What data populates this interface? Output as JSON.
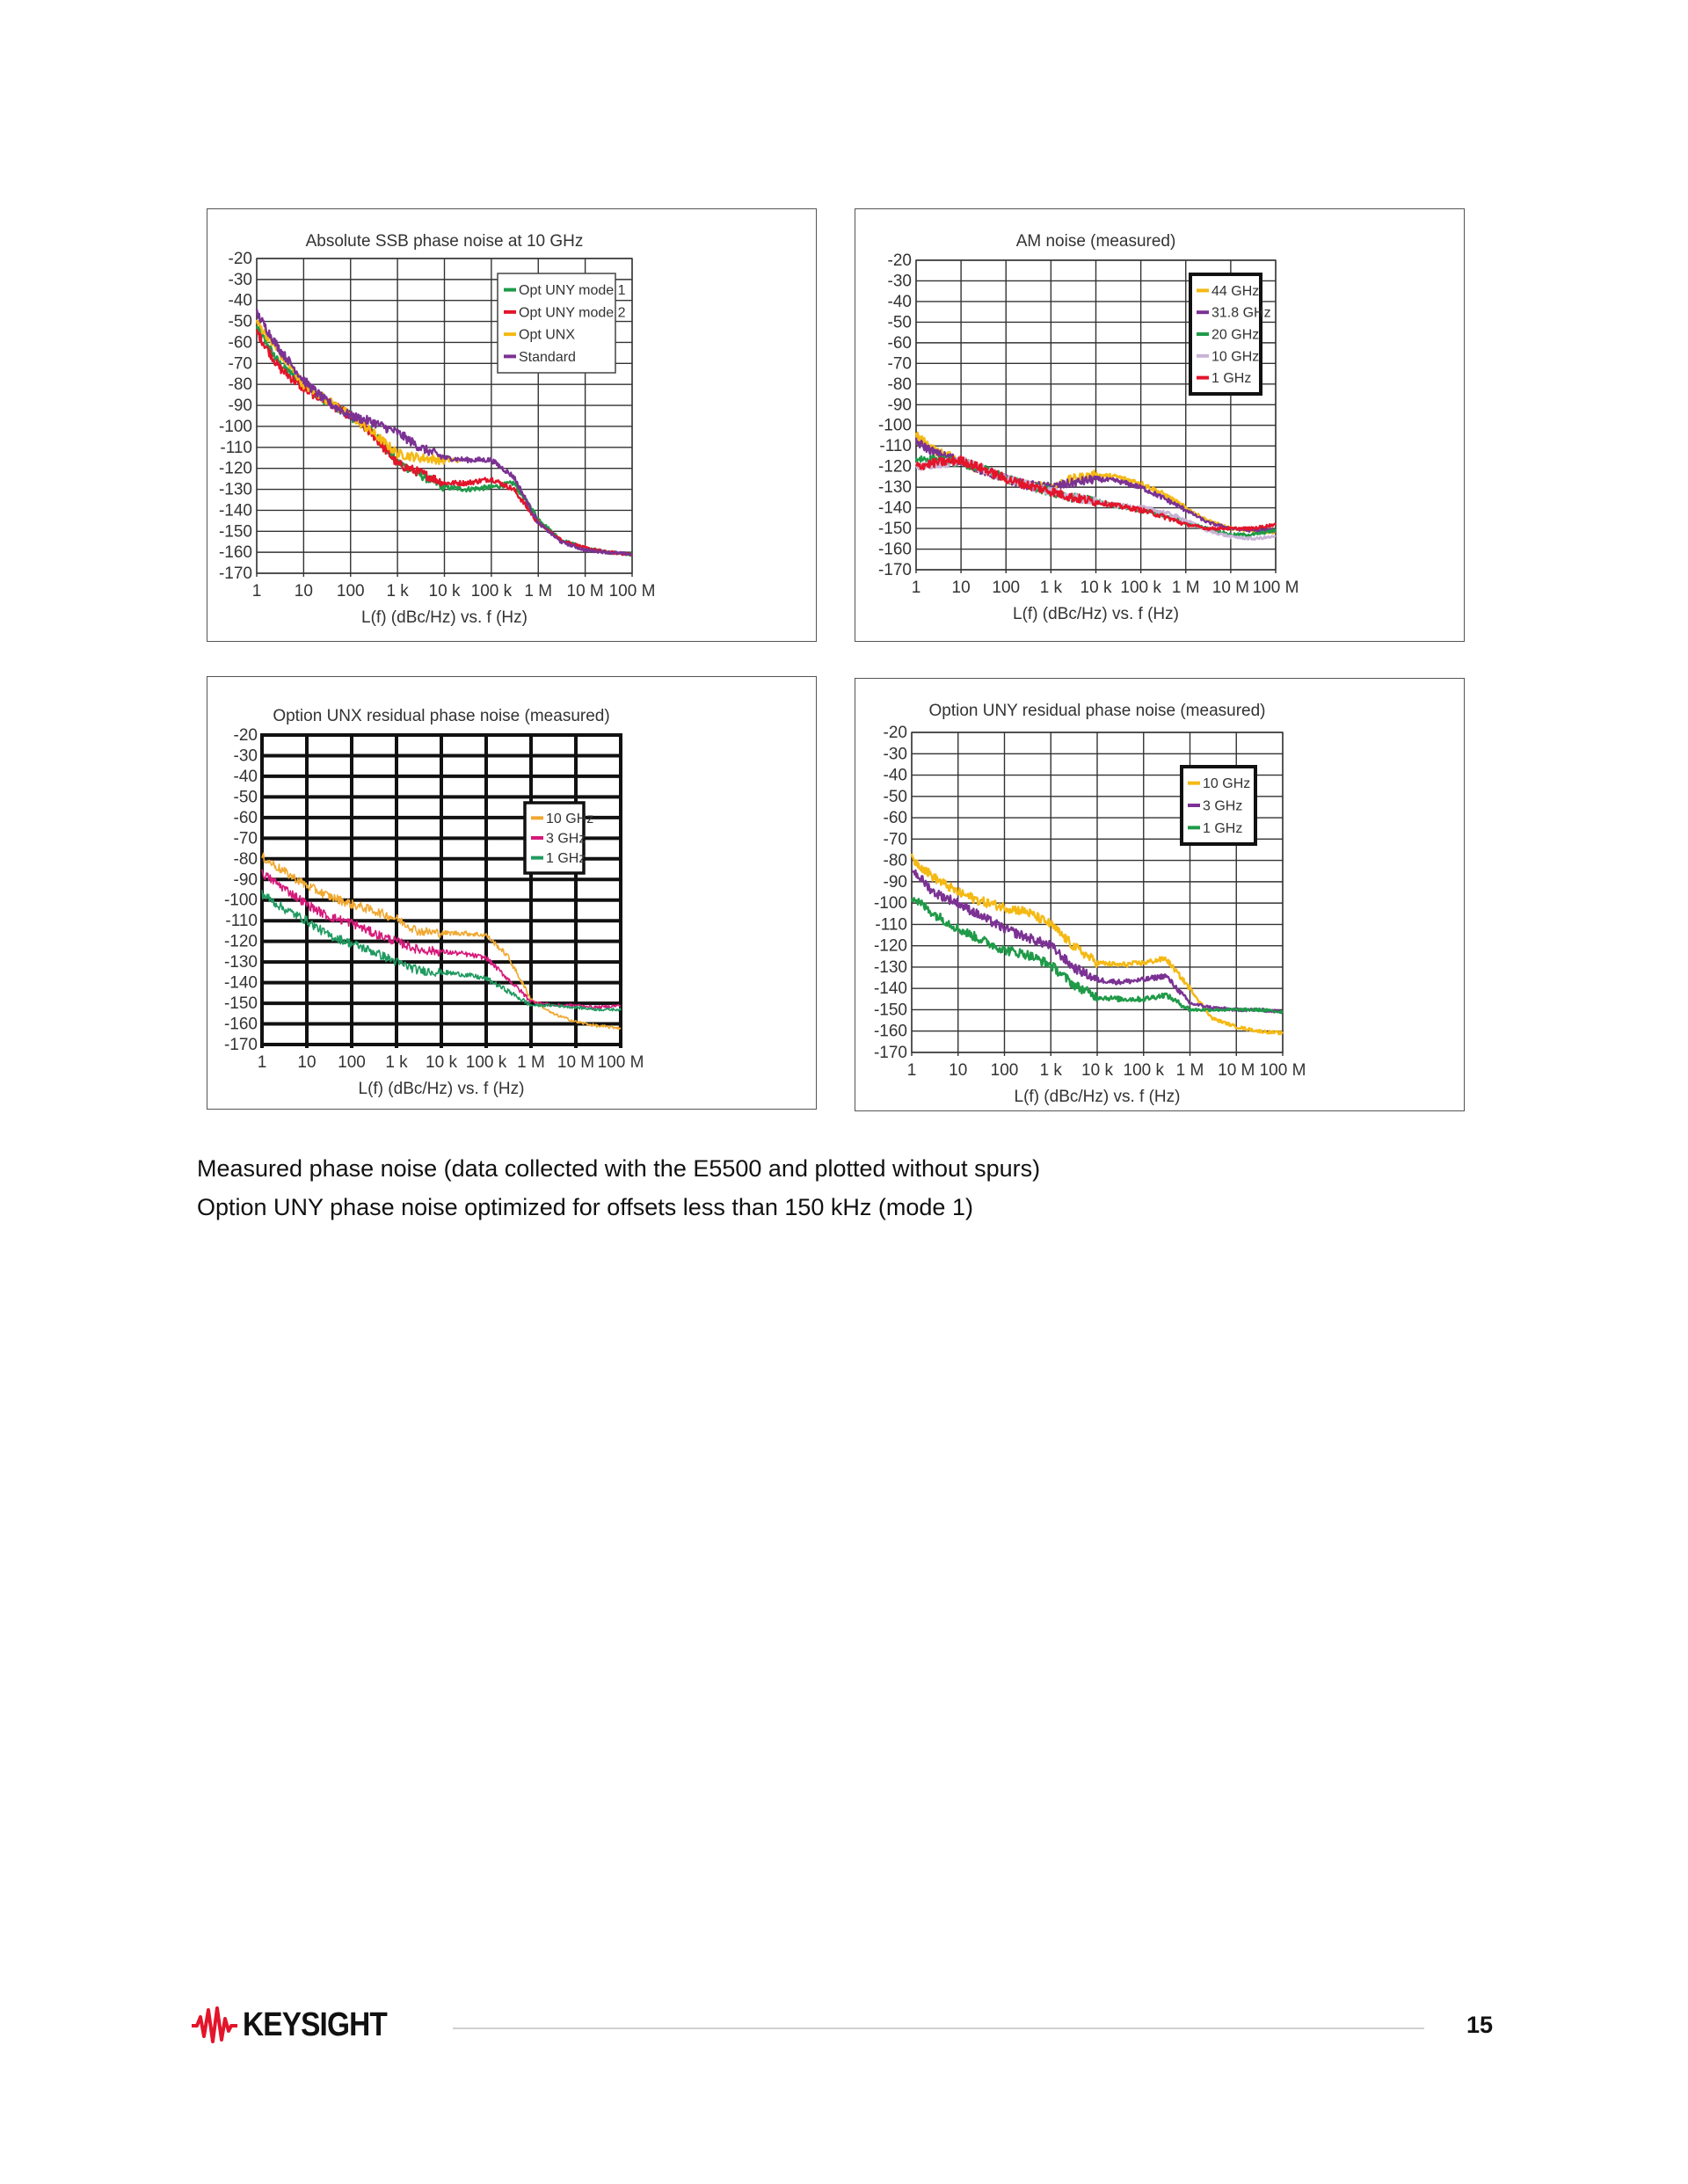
{
  "chart_data": [
    {
      "type": "line",
      "title": "Absolute SSB phase noise at 10 GHz",
      "xlabel": "L(f) (dBc/Hz) vs. f (Hz)",
      "ylabel": "",
      "xscale": "log",
      "xlim": [
        1,
        100000000
      ],
      "ylim": [
        -170,
        -20
      ],
      "grid": true,
      "legend_position": "top-right",
      "x_tick_labels": [
        "1",
        "10",
        "100",
        "1 k",
        "10 k",
        "100 k",
        "1 M",
        "10 M",
        "100 M"
      ],
      "y_tick_labels": [
        "-20",
        "-30",
        "-40",
        "-50",
        "-60",
        "-70",
        "-80",
        "-90",
        "-100",
        "-110",
        "-120",
        "-130",
        "-140",
        "-150",
        "-160",
        "-170"
      ],
      "series": [
        {
          "name": "Opt UNY mode 1",
          "color": "#1f9a48",
          "x": [
            1,
            3,
            10,
            30,
            100,
            300,
            1000,
            3000,
            10000,
            30000,
            100000,
            300000,
            1000000,
            3000000,
            10000000,
            30000000,
            100000000
          ],
          "values": [
            -53,
            -70,
            -80,
            -88,
            -95,
            -103,
            -117,
            -123,
            -129,
            -130,
            -129,
            -127,
            -144,
            -154,
            -158,
            -160,
            -161
          ]
        },
        {
          "name": "Opt UNY mode 2",
          "color": "#e3152b",
          "x": [
            1,
            3,
            10,
            30,
            100,
            300,
            1000,
            3000,
            10000,
            30000,
            100000,
            300000,
            1000000,
            3000000,
            10000000,
            30000000,
            100000000
          ],
          "values": [
            -55,
            -72,
            -82,
            -88,
            -95,
            -104,
            -118,
            -122,
            -127,
            -127,
            -125,
            -130,
            -146,
            -154,
            -158,
            -160,
            -161
          ]
        },
        {
          "name": "Opt UNX",
          "color": "#f5b914",
          "x": [
            1,
            3,
            10,
            30,
            100,
            300,
            1000,
            3000,
            10000,
            20000
          ],
          "values": [
            -50,
            -65,
            -80,
            -87,
            -95,
            -103,
            -113,
            -115,
            -116,
            -116
          ]
        },
        {
          "name": "Standard",
          "color": "#7b3293",
          "x": [
            1,
            3,
            10,
            30,
            100,
            300,
            1000,
            3000,
            10000,
            30000,
            100000,
            300000,
            1000000,
            3000000,
            10000000,
            30000000,
            100000000
          ],
          "values": [
            -46,
            -63,
            -78,
            -88,
            -95,
            -98,
            -103,
            -110,
            -115,
            -116,
            -116,
            -124,
            -146,
            -155,
            -159,
            -160,
            -161
          ]
        }
      ]
    },
    {
      "type": "line",
      "title": "AM noise (measured)",
      "xlabel": "L(f) (dBc/Hz) vs. f (Hz)",
      "ylabel": "",
      "xscale": "log",
      "xlim": [
        1,
        100000000
      ],
      "ylim": [
        -170,
        -20
      ],
      "grid": true,
      "legend_position": "top-right",
      "x_tick_labels": [
        "1",
        "10",
        "100",
        "1 k",
        "10 k",
        "100 k",
        "1 M",
        "10 M",
        "100 M"
      ],
      "y_tick_labels": [
        "-20",
        "-30",
        "-40",
        "-50",
        "-60",
        "-70",
        "-80",
        "-90",
        "-100",
        "-110",
        "-120",
        "-130",
        "-140",
        "-150",
        "-160",
        "-170"
      ],
      "series": [
        {
          "name": "44 GHz",
          "color": "#f5b914",
          "x": [
            1,
            3,
            10,
            30,
            100,
            300,
            1000,
            3000,
            10000,
            30000,
            100000,
            300000,
            1000000,
            3000000,
            10000000,
            30000000,
            100000000
          ],
          "values": [
            -105,
            -113,
            -117,
            -122,
            -126,
            -129,
            -130,
            -126,
            -124,
            -125,
            -128,
            -133,
            -140,
            -146,
            -150,
            -151,
            -152
          ]
        },
        {
          "name": "31.8 GHz",
          "color": "#7b3293",
          "x": [
            1,
            3,
            10,
            30,
            100,
            300,
            1000,
            3000,
            10000,
            30000,
            100000,
            300000,
            1000000,
            3000000,
            10000000,
            30000000,
            100000000
          ],
          "values": [
            -108,
            -114,
            -117,
            -122,
            -126,
            -129,
            -130,
            -128,
            -126,
            -127,
            -130,
            -135,
            -141,
            -147,
            -150,
            -151,
            -151
          ]
        },
        {
          "name": "20 GHz",
          "color": "#1f9a48",
          "x": [
            1,
            3,
            10,
            30,
            100,
            300,
            1000,
            3000,
            10000,
            30000,
            100000,
            300000,
            1000000,
            3000000,
            10000000,
            30000000,
            100000000
          ],
          "values": [
            -116,
            -117,
            -118,
            -121,
            -126,
            -129,
            -132,
            -135,
            -137,
            -139,
            -141,
            -143,
            -147,
            -150,
            -153,
            -153,
            -151
          ]
        },
        {
          "name": "10 GHz",
          "color": "#c9b3d6",
          "x": [
            1,
            3,
            10,
            30,
            100,
            300,
            1000,
            3000,
            10000,
            30000,
            100000,
            300000,
            1000000,
            3000000,
            10000000,
            30000000,
            100000000
          ],
          "values": [
            -120,
            -119,
            -117,
            -121,
            -126,
            -129,
            -132,
            -135,
            -137,
            -139,
            -140,
            -142,
            -146,
            -151,
            -154,
            -155,
            -154
          ]
        },
        {
          "name": "1 GHz",
          "color": "#e3152b",
          "x": [
            1,
            3,
            10,
            30,
            100,
            300,
            1000,
            3000,
            10000,
            30000,
            100000,
            300000,
            1000000,
            3000000,
            10000000,
            30000000,
            100000000
          ],
          "values": [
            -120,
            -118,
            -117,
            -121,
            -126,
            -129,
            -132,
            -135,
            -137,
            -139,
            -141,
            -144,
            -148,
            -150,
            -150,
            -150,
            -148
          ]
        }
      ]
    },
    {
      "type": "line",
      "title": "Option UNX residual phase noise (measured)",
      "xlabel": "L(f) (dBc/Hz) vs. f (Hz)",
      "ylabel": "",
      "xscale": "log",
      "xlim": [
        1,
        100000000
      ],
      "ylim": [
        -170,
        -20
      ],
      "grid": true,
      "legend_position": "right",
      "x_tick_labels": [
        "1",
        "10",
        "100",
        "1 k",
        "10 k",
        "100 k",
        "1 M",
        "10 M",
        "100 M"
      ],
      "y_tick_labels": [
        "-20",
        "-30",
        "-40",
        "-50",
        "-60",
        "-70",
        "-80",
        "-90",
        "-100",
        "-110",
        "-120",
        "-130",
        "-140",
        "-150",
        "-160",
        "-170"
      ],
      "series": [
        {
          "name": "10 GHz",
          "color": "#f0a830",
          "x": [
            1,
            3,
            10,
            30,
            100,
            300,
            1000,
            3000,
            10000,
            30000,
            100000,
            300000,
            1000000,
            3000000,
            10000000,
            30000000,
            100000000
          ],
          "values": [
            -79,
            -86,
            -93,
            -98,
            -102,
            -105,
            -109,
            -115,
            -116,
            -116,
            -117,
            -127,
            -148,
            -155,
            -159,
            -161,
            -162
          ]
        },
        {
          "name": "3 GHz",
          "color": "#d6197a",
          "x": [
            1,
            3,
            10,
            30,
            100,
            300,
            1000,
            3000,
            10000,
            30000,
            100000,
            300000,
            1000000,
            3000000,
            10000000,
            30000000,
            100000000
          ],
          "values": [
            -87,
            -94,
            -102,
            -108,
            -111,
            -116,
            -120,
            -124,
            -125,
            -126,
            -128,
            -138,
            -149,
            -151,
            -151,
            -152,
            -151
          ]
        },
        {
          "name": "1 GHz",
          "color": "#1f9a60",
          "x": [
            1,
            3,
            10,
            30,
            100,
            300,
            1000,
            3000,
            10000,
            30000,
            100000,
            300000,
            1000000,
            3000000,
            10000000,
            30000000,
            100000000
          ],
          "values": [
            -97,
            -104,
            -110,
            -117,
            -121,
            -125,
            -130,
            -134,
            -135,
            -136,
            -138,
            -144,
            -151,
            -151,
            -152,
            -153,
            -153
          ]
        }
      ]
    },
    {
      "type": "line",
      "title": "Option UNY residual phase noise (measured)",
      "xlabel": "L(f) (dBc/Hz) vs. f (Hz)",
      "ylabel": "",
      "xscale": "log",
      "xlim": [
        1,
        100000000
      ],
      "ylim": [
        -170,
        -20
      ],
      "grid": true,
      "legend_position": "top-right",
      "x_tick_labels": [
        "1",
        "10",
        "100",
        "1 k",
        "10 k",
        "100 k",
        "1 M",
        "10 M",
        "100 M"
      ],
      "y_tick_labels": [
        "-20",
        "-30",
        "-40",
        "-50",
        "-60",
        "-70",
        "-80",
        "-90",
        "-100",
        "-110",
        "-120",
        "-130",
        "-140",
        "-150",
        "-160",
        "-170"
      ],
      "series": [
        {
          "name": "10 GHz",
          "color": "#f5b914",
          "x": [
            1,
            3,
            10,
            30,
            100,
            300,
            1000,
            3000,
            10000,
            30000,
            100000,
            300000,
            1000000,
            3000000,
            10000000,
            30000000,
            100000000
          ],
          "values": [
            -79,
            -88,
            -95,
            -99,
            -102,
            -104,
            -110,
            -120,
            -128,
            -129,
            -128,
            -126,
            -140,
            -154,
            -158,
            -160,
            -161
          ]
        },
        {
          "name": "3 GHz",
          "color": "#7b3293",
          "x": [
            1,
            3,
            10,
            30,
            100,
            300,
            1000,
            3000,
            10000,
            30000,
            100000,
            300000,
            1000000,
            3000000,
            10000000,
            30000000,
            100000000
          ],
          "values": [
            -84,
            -95,
            -100,
            -106,
            -112,
            -116,
            -120,
            -130,
            -136,
            -137,
            -136,
            -134,
            -147,
            -149,
            -150,
            -150,
            -151
          ]
        },
        {
          "name": "1 GHz",
          "color": "#1f9a48",
          "x": [
            1,
            3,
            10,
            30,
            100,
            300,
            1000,
            3000,
            10000,
            30000,
            100000,
            300000,
            1000000,
            3000000,
            10000000,
            30000000,
            100000000
          ],
          "values": [
            -97,
            -105,
            -112,
            -117,
            -122,
            -124,
            -129,
            -138,
            -144,
            -145,
            -145,
            -143,
            -150,
            -150,
            -150,
            -150,
            -151
          ]
        }
      ]
    }
  ],
  "captions": [
    "Measured phase noise (data collected with the E5500 and plotted without spurs)",
    "Option UNY phase noise optimized for offsets less than 150 kHz (mode 1)"
  ],
  "footer": {
    "logo_text": "KEYSIGHT",
    "brand_color": "#e3152b",
    "page_number": "15"
  }
}
